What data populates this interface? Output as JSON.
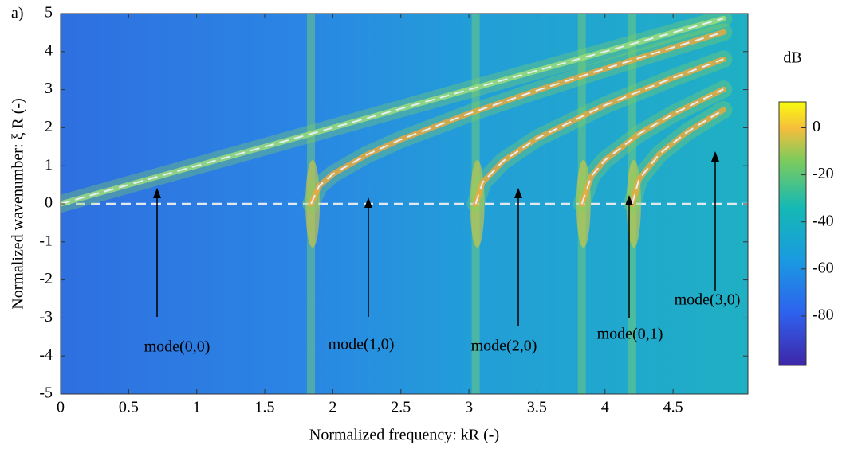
{
  "chart_data": {
    "type": "dispersion",
    "panel_label": "a)",
    "x_label": "Normalized frequency: kR (-)",
    "y_label": "Normalized wavenumber:  ξ R (-)",
    "xlim": [
      0,
      5.05
    ],
    "xticks": [
      0,
      0.5,
      1,
      1.5,
      2,
      2.5,
      3,
      3.5,
      4,
      4.5
    ],
    "ylim": [
      -5,
      5
    ],
    "yticks": [
      -5,
      -4,
      -3,
      -2,
      -1,
      0,
      1,
      2,
      3,
      4,
      5
    ],
    "hline": 0,
    "series": [
      {
        "name": "mode(0,0)",
        "color": "#e6eef5",
        "x": [
          0,
          1,
          2,
          3,
          4,
          4.87
        ],
        "values": [
          0,
          1,
          2,
          3,
          4,
          4.87
        ]
      },
      {
        "name": "mode(1,0)",
        "color": "#e6eef5",
        "x": [
          1.84,
          1.9,
          2,
          2.25,
          2.5,
          3,
          3.5,
          4,
          4.5,
          4.87
        ],
        "values": [
          0,
          0.47,
          0.78,
          1.29,
          1.69,
          2.37,
          2.98,
          3.55,
          4.11,
          4.51
        ]
      },
      {
        "name": "mode(2,0)",
        "color": "#e6eef5",
        "x": [
          3.05,
          3.1,
          3.25,
          3.5,
          4,
          4.5,
          4.87
        ],
        "values": [
          0,
          0.56,
          1.12,
          1.72,
          2.59,
          3.31,
          3.8
        ]
      },
      {
        "name": "mode(0,1)",
        "color": "#e6eef5",
        "x": [
          3.83,
          3.9,
          4,
          4.25,
          4.5,
          4.87
        ],
        "values": [
          0,
          0.73,
          1.15,
          1.84,
          2.36,
          3.01
        ]
      },
      {
        "name": "mode(3,0)",
        "color": "#e6eef5",
        "x": [
          4.2,
          4.25,
          4.4,
          4.6,
          4.87
        ],
        "values": [
          0,
          0.65,
          1.31,
          1.88,
          2.47
        ]
      }
    ],
    "colorbar": {
      "label": "dB",
      "lim": [
        -101,
        11
      ],
      "ticks": [
        0,
        -20,
        -40,
        -60,
        -80
      ]
    }
  }
}
